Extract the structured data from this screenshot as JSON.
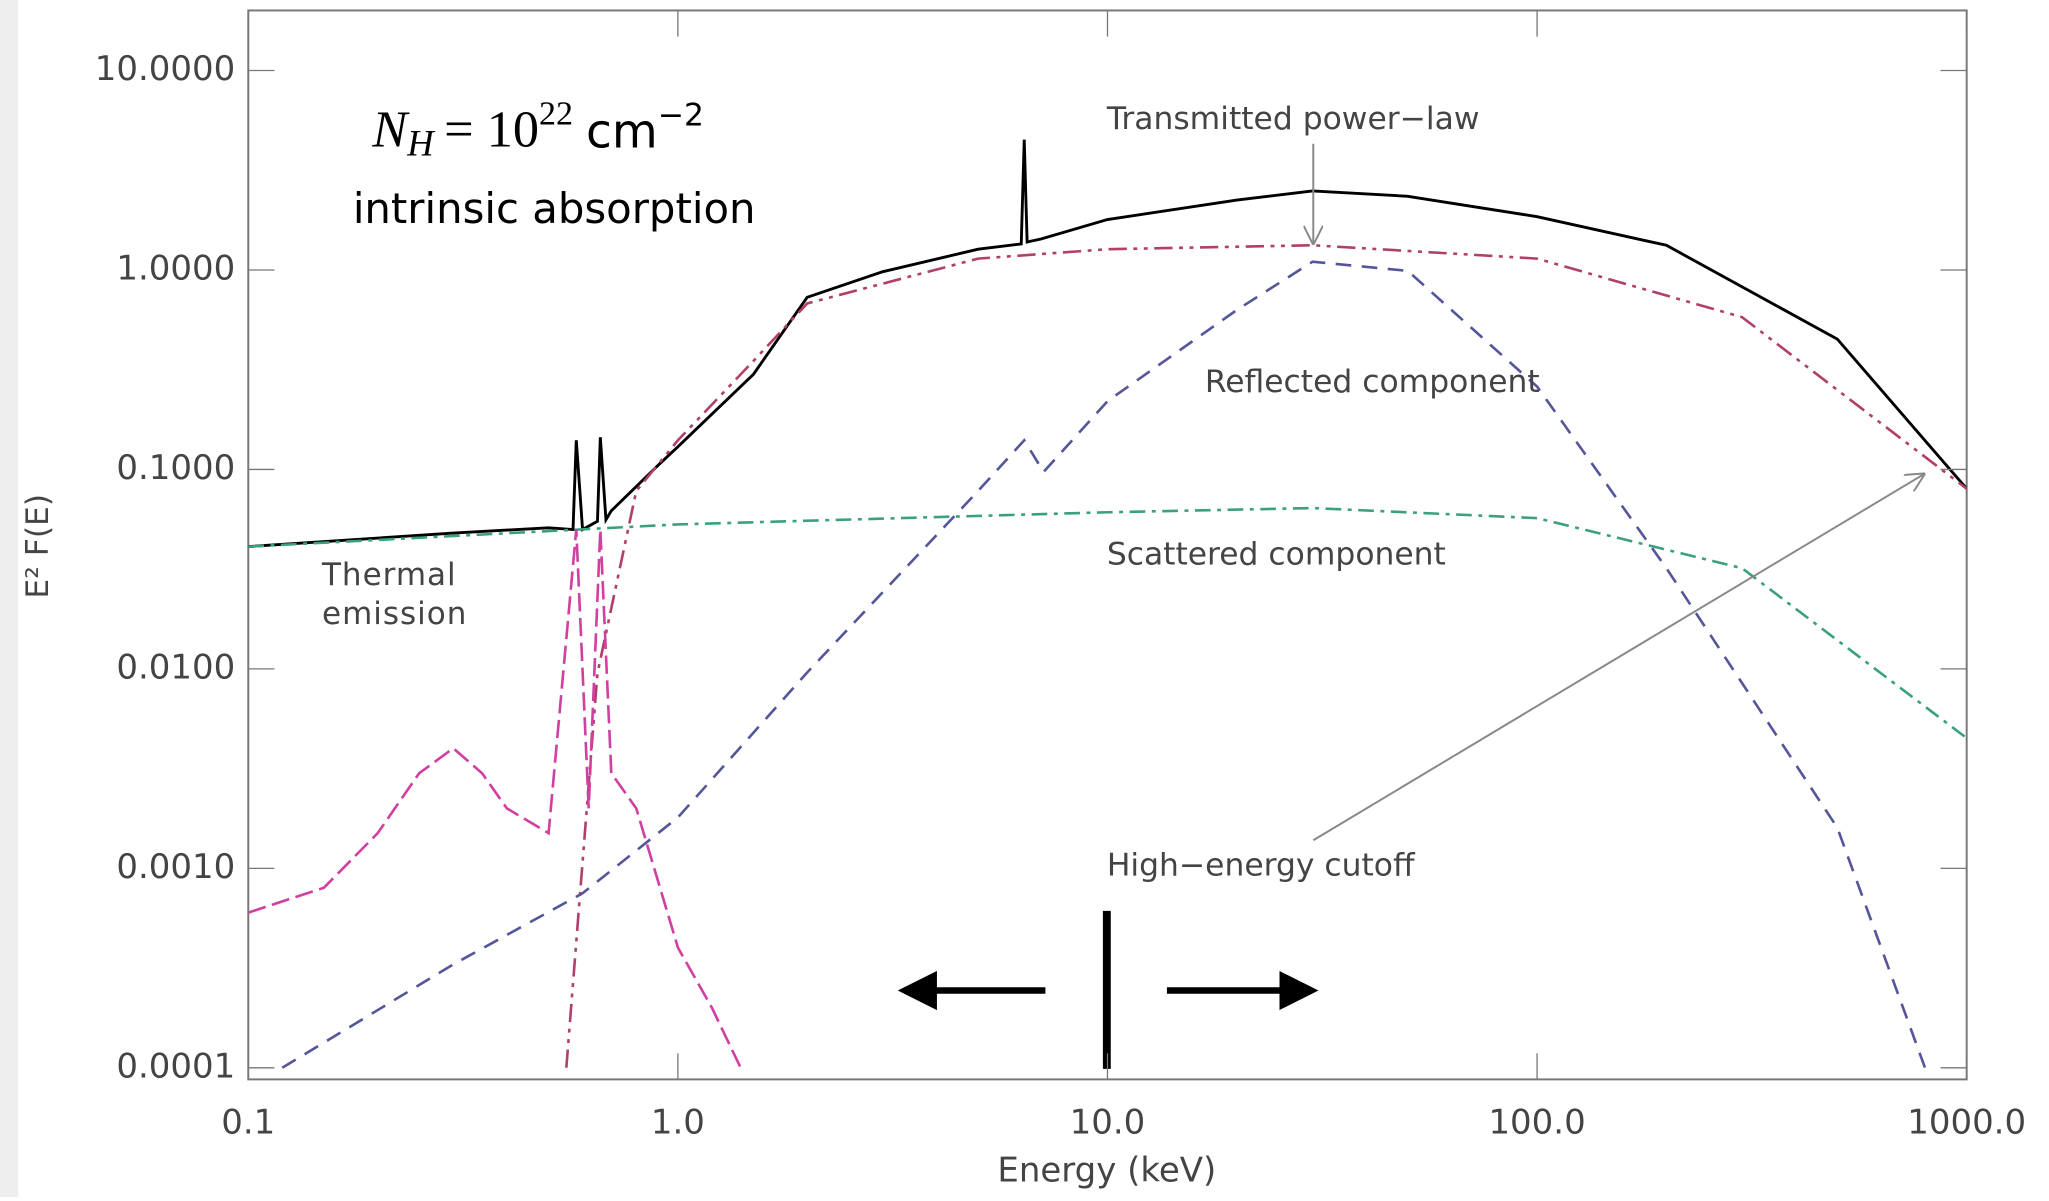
{
  "chart_data": {
    "type": "line",
    "x_label": "Energy (keV)",
    "y_label": "E² F(E)",
    "xscale": "log",
    "yscale": "log",
    "xlim": [
      0.1,
      1000
    ],
    "ylim": [
      8.75e-05,
      20
    ],
    "xticks": [
      0.1,
      {
        "value": 1,
        "label": "1.0"
      },
      {
        "value": 10,
        "label": "10.0"
      },
      {
        "value": 100,
        "label": "100.0"
      },
      {
        "value": 1000,
        "label": "1000.0"
      }
    ],
    "yticks": [
      {
        "value": 0.0001,
        "label": "0.0001"
      },
      {
        "value": 0.001,
        "label": "0.0010"
      },
      {
        "value": 0.01,
        "label": "0.0100"
      },
      {
        "value": 0.1,
        "label": "0.1000"
      },
      {
        "value": 1,
        "label": "1.0000"
      },
      {
        "value": 10,
        "label": "10.0000"
      }
    ],
    "series": [
      {
        "color": "#000000",
        "x": [
          0.1,
          0.3,
          0.5,
          0.57,
          0.58,
          0.6,
          0.65,
          0.66,
          0.68,
          0.7,
          0.9,
          1.0,
          1.5,
          2,
          3,
          5,
          6.3,
          6.4,
          6.5,
          7,
          10,
          20,
          30,
          50,
          100,
          200,
          500,
          1000
        ],
        "values": [
          0.041,
          0.048,
          0.051,
          0.05,
          0.14,
          0.05,
          0.055,
          0.145,
          0.056,
          0.062,
          0.105,
          0.13,
          0.3,
          0.73,
          0.98,
          1.27,
          1.35,
          4.5,
          1.38,
          1.43,
          1.79,
          2.24,
          2.49,
          2.34,
          1.85,
          1.33,
          0.45,
          0.08
        ]
      },
      {
        "name": "Transmitted power−law",
        "color": "#b0406a",
        "x": [
          0.55,
          0.65,
          0.8,
          1.0,
          1.5,
          2,
          5,
          10,
          30,
          100,
          300,
          1000
        ],
        "values": [
          0.0001,
          0.0095,
          0.078,
          0.14,
          0.35,
          0.68,
          1.14,
          1.27,
          1.33,
          1.14,
          0.58,
          0.08
        ]
      },
      {
        "name": "Reflected component",
        "color": "#55559a",
        "x": [
          0.12,
          0.3,
          0.6,
          1,
          2,
          5,
          6.4,
          7.1,
          10,
          20,
          30,
          50,
          100,
          200,
          500,
          800
        ],
        "values": [
          0.0001,
          0.00033,
          0.00075,
          0.0018,
          0.0096,
          0.078,
          0.14,
          0.097,
          0.22,
          0.63,
          1.1,
          0.99,
          0.26,
          0.032,
          0.0016,
          0.0001
        ]
      },
      {
        "name": "Scattered component",
        "color": "#3aa080",
        "x": [
          0.1,
          1,
          10,
          30,
          100,
          300,
          1000
        ],
        "values": [
          0.041,
          0.053,
          0.061,
          0.064,
          0.057,
          0.032,
          0.0045
        ]
      },
      {
        "name": "Thermal emission",
        "color": "#d040a0",
        "x": [
          0.1,
          0.15,
          0.2,
          0.25,
          0.3,
          0.35,
          0.4,
          0.5,
          0.58,
          0.62,
          0.66,
          0.7,
          0.8,
          1.0,
          1.2,
          1.4
        ],
        "values": [
          0.0006,
          0.0008,
          0.0015,
          0.003,
          0.004,
          0.003,
          0.002,
          0.0015,
          0.05,
          0.002,
          0.05,
          0.003,
          0.002,
          0.0004,
          0.0002,
          0.0001
        ]
      }
    ],
    "annotations": {
      "cutoff": "High−energy cutoff",
      "absorption": "intrinsic absorption",
      "nh": {
        "symbol": "N",
        "subscript": "H",
        "equals": "= 10",
        "exponent": "22",
        "unit": "cm",
        "unit_exponent": "−2"
      }
    }
  }
}
